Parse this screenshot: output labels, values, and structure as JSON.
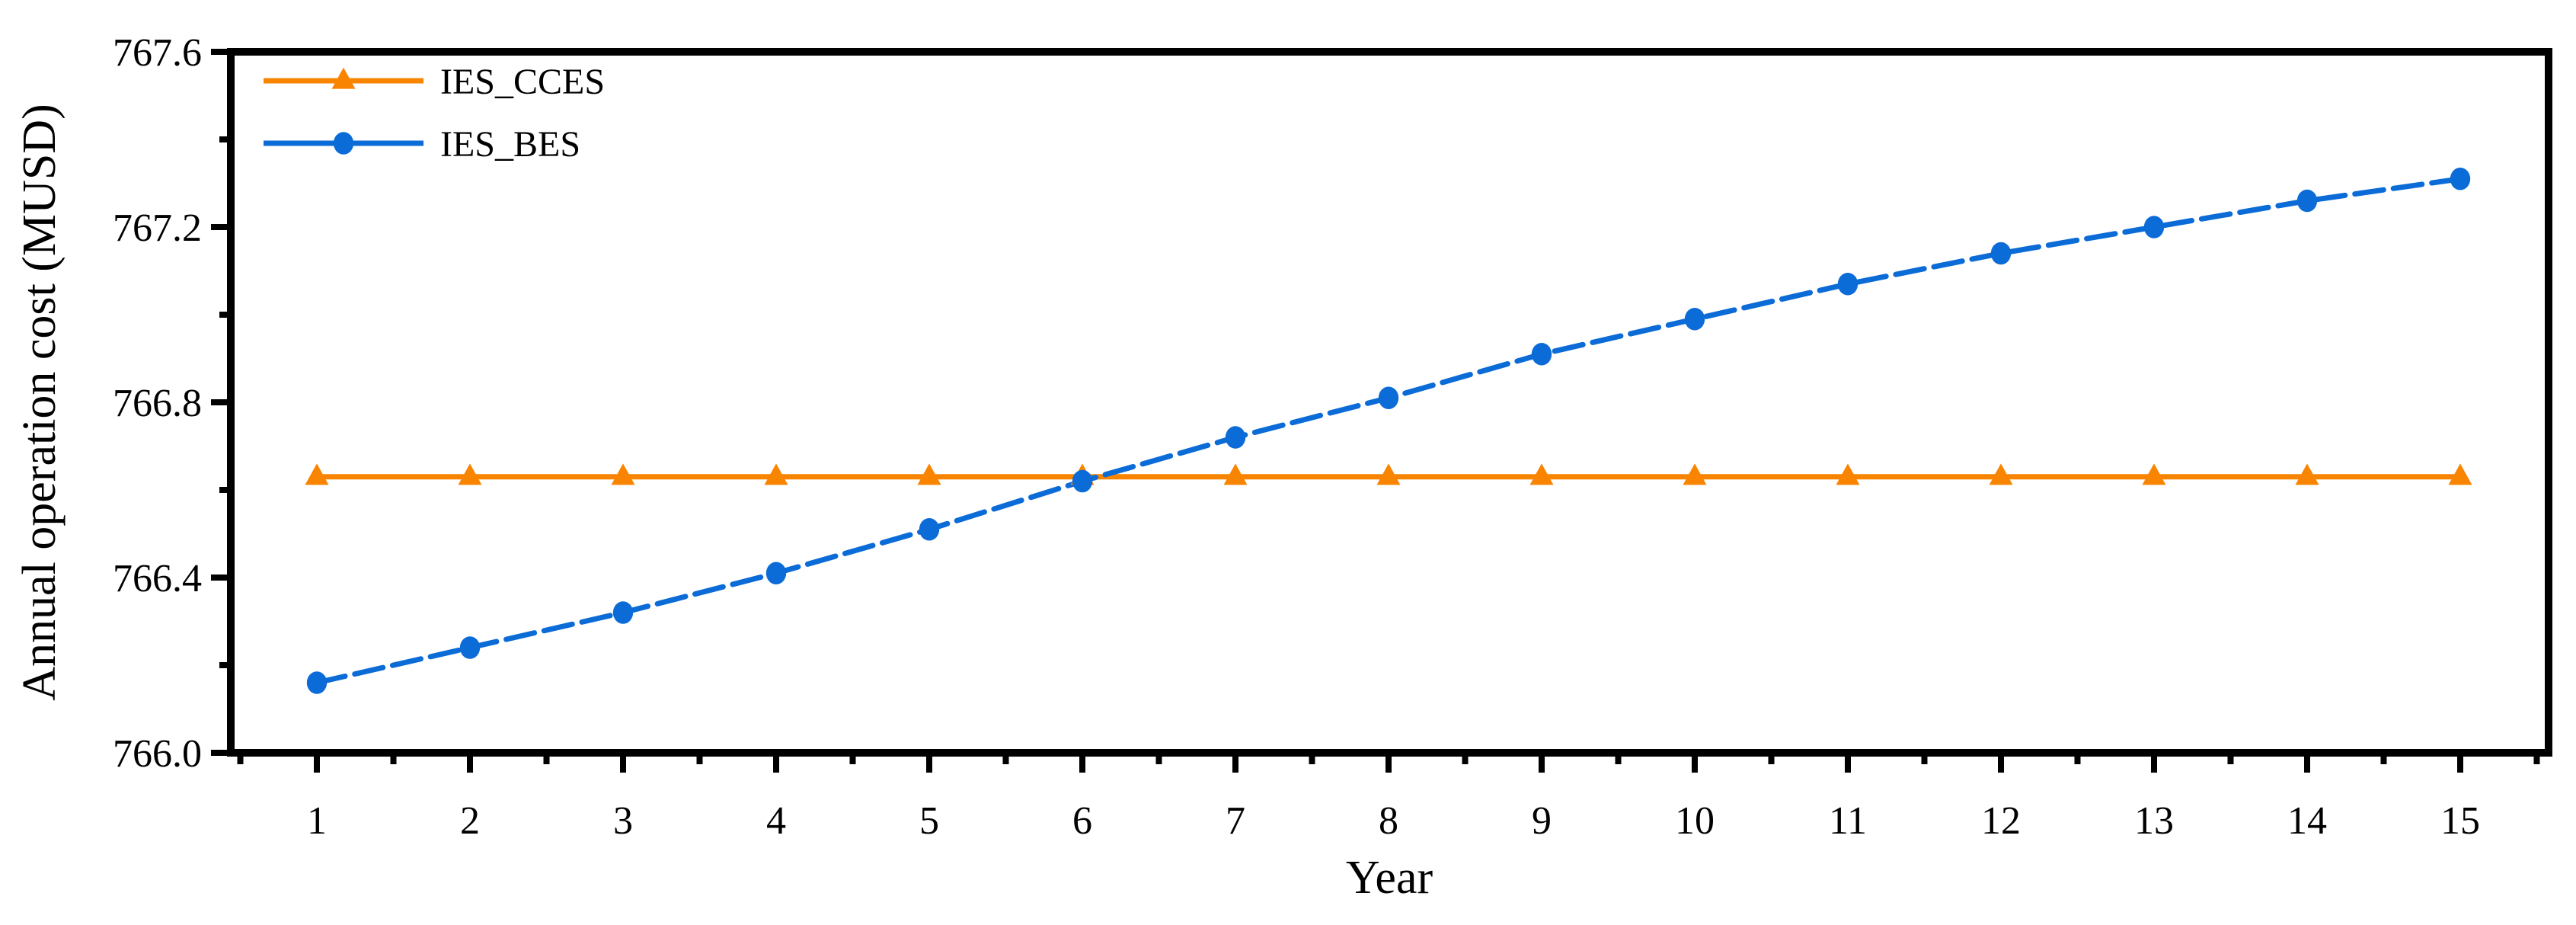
{
  "chart_data": {
    "type": "line",
    "title": "",
    "xlabel": "Year",
    "ylabel": "Annual operation cost (MUSD)",
    "x": [
      1,
      2,
      3,
      4,
      5,
      6,
      7,
      8,
      9,
      10,
      11,
      12,
      13,
      14,
      15
    ],
    "series": [
      {
        "name": "IES_CCES",
        "color": "#F98400",
        "marker": "triangle",
        "line_style": "solid",
        "values": [
          766.63,
          766.63,
          766.63,
          766.63,
          766.63,
          766.63,
          766.63,
          766.63,
          766.63,
          766.63,
          766.63,
          766.63,
          766.63,
          766.63,
          766.63
        ]
      },
      {
        "name": "IES_BES",
        "color": "#0B6BD7",
        "marker": "circle",
        "line_style": "dashed",
        "values": [
          766.16,
          766.24,
          766.32,
          766.41,
          766.51,
          766.62,
          766.72,
          766.81,
          766.91,
          766.99,
          767.07,
          767.14,
          767.2,
          767.26,
          767.31
        ]
      }
    ],
    "xlim": [
      0.44,
      15.58
    ],
    "ylim": [
      766.0,
      767.6
    ],
    "y_major_ticks": [
      766.0,
      766.4,
      766.8,
      767.2,
      767.6
    ],
    "y_tick_decimals": 1,
    "y_minor_step": 0.2,
    "x_major_ticks": [
      1,
      2,
      3,
      4,
      5,
      6,
      7,
      8,
      9,
      10,
      11,
      12,
      13,
      14,
      15
    ],
    "x_minor_step": 0.5,
    "grid": false,
    "legend_position": "top-left",
    "axis_color": "#000000",
    "background_color": "#ffffff"
  }
}
